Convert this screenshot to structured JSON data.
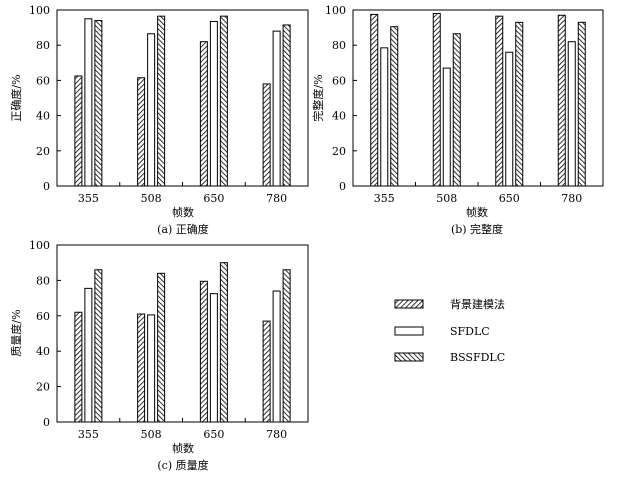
{
  "chart_data": [
    {
      "type": "bar",
      "panel_caption": "(a) 正确度",
      "xlabel": "帧数",
      "ylabel": "正确度/%",
      "ylim": [
        0,
        100
      ],
      "yticks": [
        0,
        20,
        40,
        60,
        80,
        100
      ],
      "categories": [
        "355",
        "508",
        "650",
        "780"
      ],
      "series": [
        {
          "name": "背景建模法",
          "values": [
            62.5,
            61.5,
            82,
            58
          ]
        },
        {
          "name": "SFDLC",
          "values": [
            95,
            86.5,
            93.5,
            88
          ]
        },
        {
          "name": "BSSFDLC",
          "values": [
            94,
            96.5,
            96.5,
            91.5
          ]
        }
      ]
    },
    {
      "type": "bar",
      "panel_caption": "(b) 完整度",
      "xlabel": "帧数",
      "ylabel": "完整度/%",
      "ylim": [
        0,
        100
      ],
      "yticks": [
        0,
        20,
        40,
        60,
        80,
        100
      ],
      "categories": [
        "355",
        "508",
        "650",
        "780"
      ],
      "series": [
        {
          "name": "背景建模法",
          "values": [
            97.5,
            98,
            96.5,
            97
          ]
        },
        {
          "name": "SFDLC",
          "values": [
            78.5,
            67,
            76,
            82
          ]
        },
        {
          "name": "BSSFDLC",
          "values": [
            90.5,
            86.5,
            93,
            93
          ]
        }
      ]
    },
    {
      "type": "bar",
      "panel_caption": "(c) 质量度",
      "xlabel": "帧数",
      "ylabel": "质量度/%",
      "ylim": [
        0,
        100
      ],
      "yticks": [
        0,
        20,
        40,
        60,
        80,
        100
      ],
      "categories": [
        "355",
        "508",
        "650",
        "780"
      ],
      "series": [
        {
          "name": "背景建模法",
          "values": [
            62,
            61,
            79.5,
            57
          ]
        },
        {
          "name": "SFDLC",
          "values": [
            75.5,
            60.5,
            72.5,
            74
          ]
        },
        {
          "name": "BSSFDLC",
          "values": [
            86,
            84,
            90,
            86
          ]
        }
      ]
    }
  ],
  "legend": {
    "items": [
      {
        "label": "背景建模法",
        "pattern": "hatch-fwd"
      },
      {
        "label": "SFDLC",
        "pattern": "empty"
      },
      {
        "label": "BSSFDLC",
        "pattern": "hatch-back"
      }
    ]
  },
  "colors": {
    "stroke": "#000000",
    "background": "#ffffff"
  }
}
